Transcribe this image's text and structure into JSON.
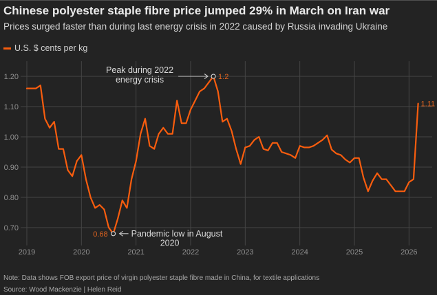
{
  "header": {
    "title": "Chinese polyester staple fibre price jumped 29% in March on Iran war",
    "subtitle": "Prices surged faster than during last energy crisis in 2022 caused by Russia invading Ukraine"
  },
  "legend": {
    "label": "U.S. $ cents per kg"
  },
  "footer": {
    "note": "Note: Data shows FOB export price of virgin polyester staple fibre made in China, for textile applications",
    "source": "Source: Wood Mackenzie | Helen Reid"
  },
  "colors": {
    "background": "#232323",
    "line": "#f95d0e",
    "accent_label": "#e2641f",
    "grid": "#454545",
    "axis_text": "#919191",
    "annotation_text": "#d8d8d8",
    "arrow": "#c9c9c9"
  },
  "chart_data": {
    "type": "line",
    "title": "Chinese polyester staple fibre price jumped 29% in March on Iran war",
    "subtitle": "Prices surged faster than during last energy crisis in 2022 caused by Russia invading Ukraine",
    "unit": "U.S. $ cents per kg",
    "frequency": "monthly",
    "x_start": "2019-01",
    "x_end": "2026-03",
    "x_tick_labels": [
      "2019",
      "2020",
      "2021",
      "2022",
      "2023",
      "2024",
      "2025",
      "2026"
    ],
    "y_ticks": [
      0.7,
      0.8,
      0.9,
      1.0,
      1.1,
      1.2
    ],
    "ylim": [
      0.64,
      1.25
    ],
    "grid": true,
    "legend_position": "top-left",
    "series": [
      {
        "name": "U.S. $ cents per kg",
        "values": [
          1.16,
          1.16,
          1.16,
          1.17,
          1.06,
          1.03,
          1.05,
          0.96,
          0.96,
          0.89,
          0.87,
          0.92,
          0.94,
          0.86,
          0.8,
          0.765,
          0.775,
          0.76,
          0.7,
          0.68,
          0.73,
          0.79,
          0.765,
          0.86,
          0.92,
          1.01,
          1.06,
          0.97,
          0.96,
          1.01,
          1.03,
          1.01,
          1.01,
          1.12,
          1.045,
          1.045,
          1.09,
          1.12,
          1.15,
          1.16,
          1.18,
          1.2,
          1.15,
          1.05,
          1.06,
          1.02,
          0.96,
          0.91,
          0.965,
          0.97,
          0.99,
          1.0,
          0.96,
          0.955,
          0.98,
          0.98,
          0.95,
          0.945,
          0.94,
          0.93,
          0.97,
          0.965,
          0.965,
          0.97,
          0.98,
          0.99,
          1.005,
          0.958,
          0.945,
          0.94,
          0.925,
          0.915,
          0.93,
          0.93,
          0.865,
          0.82,
          0.855,
          0.88,
          0.86,
          0.86,
          0.84,
          0.82,
          0.82,
          0.82,
          0.85,
          0.86,
          1.11
        ]
      }
    ],
    "annotations": [
      {
        "id": "peak",
        "point_index": 41,
        "value_label": "1.2",
        "text_lines": [
          "Peak during 2022",
          "energy crisis"
        ]
      },
      {
        "id": "low",
        "point_index": 19,
        "value_label": "0.68",
        "text_lines": [
          "Pandemic low in August",
          "2020"
        ]
      },
      {
        "id": "last",
        "point_index": 86,
        "value_label": "1.11",
        "text_lines": []
      }
    ]
  }
}
